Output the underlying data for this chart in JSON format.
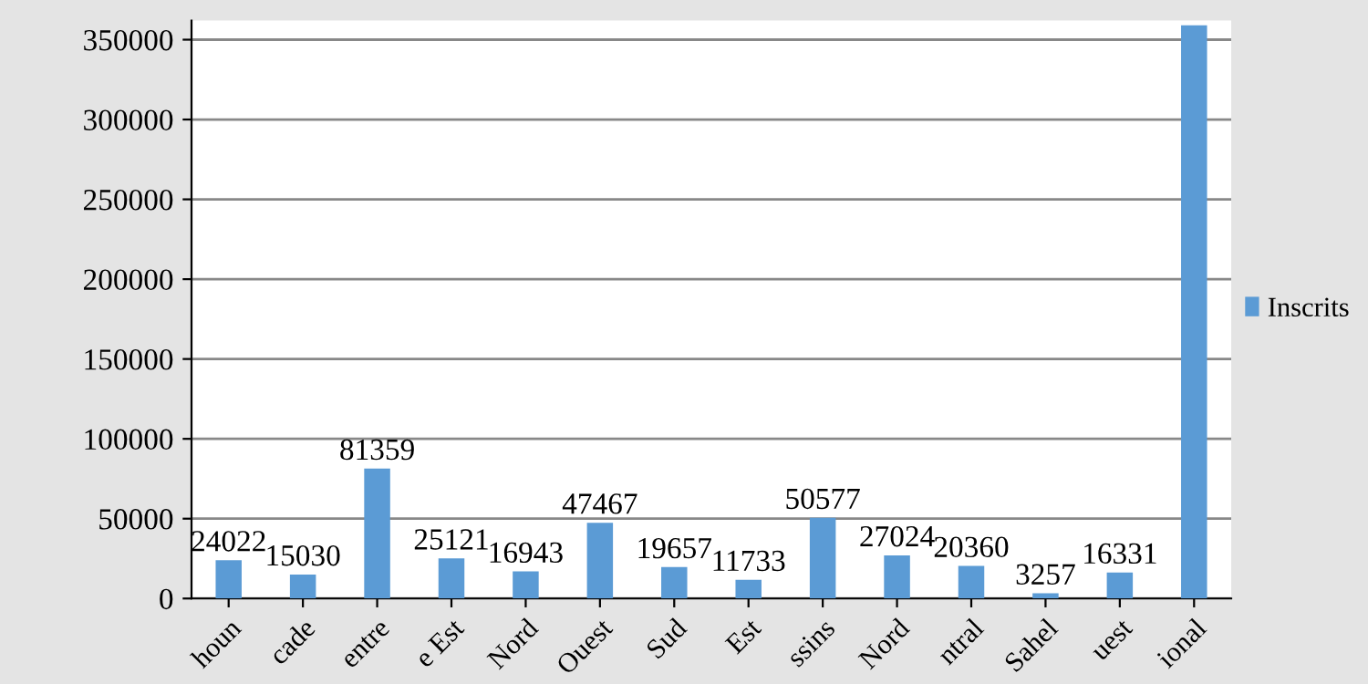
{
  "chart_data": {
    "type": "bar",
    "categories": [
      "houn",
      "cade",
      "entre",
      "e Est",
      "Nord",
      "Ouest",
      "Sud",
      "Est",
      "ssins",
      "Nord",
      "ntral",
      "Sahel",
      "uest",
      "ional"
    ],
    "series": [
      {
        "name": "Inscrits",
        "color": "#5b9bd5",
        "values": [
          24022,
          15030,
          81359,
          25121,
          16943,
          47467,
          19657,
          11733,
          50577,
          27024,
          20360,
          3257,
          16331,
          359000
        ],
        "value_labels": [
          "24022",
          "15030",
          "81359",
          "25121",
          "16943",
          "47467",
          "19657",
          "11733",
          "50577",
          "27024",
          "20360",
          "3257",
          "16331",
          null
        ]
      }
    ],
    "ylim": [
      0,
      362000
    ],
    "yticks": [
      0,
      50000,
      100000,
      150000,
      200000,
      250000,
      300000,
      350000
    ],
    "grid": "y",
    "legend": "right"
  }
}
